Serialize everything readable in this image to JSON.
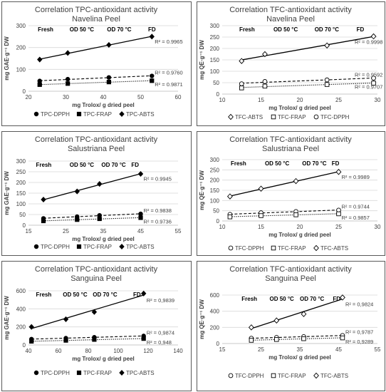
{
  "charts": [
    {
      "title": "Correlation TPC-antioxidant activity",
      "subtitle": "Navelina Peel",
      "xlabel": "mg Trolox/ g dried peel",
      "ylabel": "mg GAE·g⁻¹ DW",
      "xlim": [
        20,
        60
      ],
      "ylim": [
        0,
        300
      ],
      "xticks": [
        20,
        30,
        40,
        50,
        60
      ],
      "yticks": [
        0,
        100,
        200,
        300
      ],
      "xtick_labels": [
        "20",
        "30",
        "40",
        "50",
        "60"
      ],
      "ytick_labels": [
        "0",
        "100",
        "200",
        "300"
      ],
      "annotations": [
        {
          "text": "Fresh",
          "x": 22.5
        },
        {
          "text": "OD 50 °C",
          "x": 31
        },
        {
          "text": "OD 70 °C",
          "x": 41
        },
        {
          "text": "FD",
          "x": 52
        }
      ],
      "series": [
        {
          "name": "TPC-DPPH",
          "marker": "circle",
          "line": "dash",
          "r2": "R² = 0.9760",
          "x": [
            23,
            30.5,
            41.5,
            53
          ],
          "y": [
            47,
            55,
            63,
            70
          ]
        },
        {
          "name": "TPC-FRAP",
          "marker": "square",
          "line": "dot",
          "r2": "R² = 0.9871",
          "x": [
            23,
            30.5,
            41.5,
            53
          ],
          "y": [
            30,
            35,
            42,
            48
          ]
        },
        {
          "name": "TPC-ABTS",
          "marker": "diamond",
          "line": "solid",
          "r2": "R² = 0.9965",
          "x": [
            23,
            30.5,
            41.5,
            53
          ],
          "y": [
            145,
            175,
            212,
            250
          ]
        }
      ],
      "legend": [
        "TPC-DPPH",
        "TPC-FRAP",
        "TPC-ABTS"
      ]
    },
    {
      "title": "Correlation TFC-antioxidant activity",
      "subtitle": "Navelina Peel",
      "xlabel": "mg Trolox/ g dried peel",
      "ylabel": "mg QE·g⁻¹ DW",
      "xlim": [
        10,
        30
      ],
      "ylim": [
        0,
        300
      ],
      "xticks": [
        10,
        15,
        20,
        25,
        30
      ],
      "yticks": [
        0,
        50,
        100,
        150,
        200,
        250,
        300
      ],
      "xtick_labels": [
        "10",
        "15",
        "20",
        "25",
        "30"
      ],
      "ytick_labels": [
        "0",
        "50",
        "100",
        "150",
        "200",
        "250",
        "300"
      ],
      "annotations": [
        {
          "text": "Fresh",
          "x": 12.2
        },
        {
          "text": "OD 50 °C",
          "x": 16.6
        },
        {
          "text": "OD 70 °C",
          "x": 21.9
        },
        {
          "text": "FD",
          "x": 27.3
        }
      ],
      "series": [
        {
          "name": "TFC-ABTS",
          "marker": "diamond-open",
          "line": "solid",
          "r2": "R² = 0.9998",
          "x": [
            12.5,
            15.5,
            23.5,
            29.5
          ],
          "y": [
            145,
            175,
            213,
            253
          ]
        },
        {
          "name": "TFC-FRAP",
          "marker": "square-open",
          "line": "dot",
          "r2": "R² = 0.9707",
          "x": [
            12.5,
            15.5,
            23.5,
            29.5
          ],
          "y": [
            27,
            35,
            42,
            48
          ]
        },
        {
          "name": "TFC-DPPH",
          "marker": "circle-open",
          "line": "dash",
          "r2": "R² = 0.9592",
          "x": [
            12.5,
            15.5,
            23.5,
            29.5
          ],
          "y": [
            45,
            55,
            62,
            70
          ]
        }
      ],
      "legend": [
        "TFC-ABTS",
        "TFC-FRAP",
        "TFC-DPPH"
      ]
    },
    {
      "title": "Correlation TPC-antioxidant activity",
      "subtitle": "Salustriana Peel",
      "xlabel": "mg Trolox/ g dried peel",
      "ylabel": "mg GAE·g⁻¹ DW",
      "xlim": [
        15,
        55
      ],
      "ylim": [
        0,
        300
      ],
      "xticks": [
        15,
        25,
        35,
        45,
        55
      ],
      "yticks": [
        0,
        50,
        100,
        150,
        200,
        250,
        300
      ],
      "xtick_labels": [
        "15",
        "25",
        "35",
        "45",
        "55"
      ],
      "ytick_labels": [
        "0",
        "50",
        "100",
        "150",
        "200",
        "250",
        "300"
      ],
      "annotations": [
        {
          "text": "Fresh",
          "x": 17
        },
        {
          "text": "OD 50 °C",
          "x": 26
        },
        {
          "text": "OD 70 °C",
          "x": 34.5
        },
        {
          "text": "FD",
          "x": 42.5
        }
      ],
      "series": [
        {
          "name": "TPC-DPPH",
          "marker": "circle",
          "line": "dash",
          "r2": "R² = 0.9838",
          "x": [
            19,
            28,
            34,
            45
          ],
          "y": [
            32,
            40,
            46,
            53
          ]
        },
        {
          "name": "TPC-FRAP",
          "marker": "square",
          "line": "dot",
          "r2": "R² = 0.9736",
          "x": [
            19,
            28,
            34,
            45
          ],
          "y": [
            20,
            26,
            30,
            35
          ]
        },
        {
          "name": "TPC-ABTS",
          "marker": "diamond",
          "line": "solid",
          "r2": "R² = 0.9945",
          "x": [
            19,
            28,
            34,
            45
          ],
          "y": [
            120,
            158,
            193,
            240
          ]
        }
      ],
      "legend": [
        "TPC-DPPH",
        "TPC-FRAP",
        "TPC-ABTS"
      ]
    },
    {
      "title": "Correlation TFC-antioxidant activity",
      "subtitle": "Salustriana Peel",
      "xlabel": "mg Trolox/ g dried peel",
      "ylabel": "mg QE·g⁻¹ DW",
      "xlim": [
        10,
        30
      ],
      "ylim": [
        0,
        300
      ],
      "xticks": [
        10,
        15,
        20,
        25,
        30
      ],
      "yticks": [
        0,
        50,
        100,
        150,
        200,
        250,
        300
      ],
      "xtick_labels": [
        "10",
        "15",
        "20",
        "25",
        "30"
      ],
      "ytick_labels": [
        "0",
        "50",
        "100",
        "150",
        "200",
        "250",
        "300"
      ],
      "annotations": [
        {
          "text": "Fresh",
          "x": 11.1
        },
        {
          "text": "OD 50 °C",
          "x": 15.5
        },
        {
          "text": "OD 70 °C",
          "x": 20.3
        },
        {
          "text": "FD",
          "x": 24.1
        }
      ],
      "series": [
        {
          "name": "TFC-DPPH",
          "marker": "circle-open",
          "line": "dash",
          "r2": "R² = 0.9744",
          "x": [
            11,
            15,
            19.5,
            25
          ],
          "y": [
            32,
            40,
            46,
            53
          ]
        },
        {
          "name": "TFC-FRAP",
          "marker": "square-open",
          "line": "dot",
          "r2": "R² = 0.9857",
          "x": [
            11,
            15,
            19.5,
            25
          ],
          "y": [
            20,
            26,
            30,
            35
          ]
        },
        {
          "name": "TFC-ABTS",
          "marker": "diamond-open",
          "line": "solid",
          "r2": "R² = 0.9989",
          "x": [
            11,
            15,
            19.5,
            25
          ],
          "y": [
            120,
            158,
            195,
            240
          ]
        }
      ],
      "legend": [
        "TFC-DPPH",
        "TFC-FRAP",
        "TFC-ABTS"
      ]
    },
    {
      "title": "Correlation TPC-antioxidant activity",
      "subtitle": "Sanguina Peel",
      "xlabel": "mg Trolox/ g dried peel",
      "ylabel": "mg GAE·g⁻¹ DW",
      "xlim": [
        40,
        140
      ],
      "ylim": [
        0,
        600
      ],
      "xticks": [
        40,
        60,
        80,
        100,
        120,
        140
      ],
      "yticks": [
        0,
        200,
        400,
        600
      ],
      "xtick_labels": [
        "40",
        "60",
        "80",
        "100",
        "120",
        "140"
      ],
      "ytick_labels": [
        "0",
        "200",
        "400",
        "600"
      ],
      "annotations": [
        {
          "text": "Fresh",
          "x": 45
        },
        {
          "text": "OD 50 °C",
          "x": 63
        },
        {
          "text": "OD 70 °C",
          "x": 83
        },
        {
          "text": "FD",
          "x": 110
        }
      ],
      "series": [
        {
          "name": "TPC-DPPH",
          "marker": "circle",
          "line": "dash",
          "r2": "R² = 0,9874",
          "x": [
            42,
            65,
            84,
            117
          ],
          "y": [
            65,
            75,
            85,
            100
          ]
        },
        {
          "name": "TPC-FRAP",
          "marker": "square",
          "line": "dot",
          "r2": "R² = 0,948",
          "x": [
            42,
            65,
            84,
            117
          ],
          "y": [
            40,
            50,
            60,
            70
          ]
        },
        {
          "name": "TPC-ABTS",
          "marker": "diamond",
          "line": "solid",
          "r2": "R² = 0,9839",
          "x": [
            42,
            65,
            84,
            117
          ],
          "y": [
            200,
            285,
            365,
            570
          ]
        }
      ],
      "legend": [
        "TPC-DPPH",
        "TPC-FRAP",
        "TPC-ABTS"
      ]
    },
    {
      "title": "Correlation TFC-antioxidant activity",
      "subtitle": "Sanguina Peel",
      "xlabel": "mg Trolox/ g dried peel",
      "ylabel": "mg QE·g⁻¹ DW",
      "xlim": [
        15,
        55
      ],
      "ylim": [
        0,
        600
      ],
      "xticks": [
        15,
        25,
        35,
        45,
        55
      ],
      "yticks": [
        0,
        200,
        400,
        600
      ],
      "xtick_labels": [
        "15",
        "25",
        "35",
        "45",
        "55"
      ],
      "ytick_labels": [
        "0",
        "200",
        "400",
        "600"
      ],
      "annotations": [
        {
          "text": "Fresh",
          "x": 20
        },
        {
          "text": "OD 50 °C",
          "x": 27.2
        },
        {
          "text": "OD 70 °C",
          "x": 35
        },
        {
          "text": "FD",
          "x": 43.5
        }
      ],
      "series": [
        {
          "name": "TFC-DPPH",
          "marker": "circle-open",
          "line": "dash",
          "r2": "R² = 0,9787",
          "x": [
            22.5,
            29,
            36,
            46
          ],
          "y": [
            65,
            75,
            85,
            100
          ]
        },
        {
          "name": "TFC-FRAP",
          "marker": "square-open",
          "line": "dot",
          "r2": "R² = 0,9289",
          "x": [
            22.5,
            29,
            36,
            46
          ],
          "y": [
            40,
            50,
            60,
            70
          ]
        },
        {
          "name": "TFC-ABTS",
          "marker": "diamond-open",
          "line": "solid",
          "r2": "R² = 0,9824",
          "x": [
            22.5,
            29,
            36,
            46
          ],
          "y": [
            200,
            285,
            365,
            570
          ]
        }
      ],
      "legend": [
        "TFC-DPPH",
        "TFC-FRAP",
        "TFC-ABTS"
      ]
    }
  ],
  "colors": {
    "frame": "#595959",
    "grid": "#d9d9d9",
    "ink": "#000000",
    "text": "#404040"
  }
}
